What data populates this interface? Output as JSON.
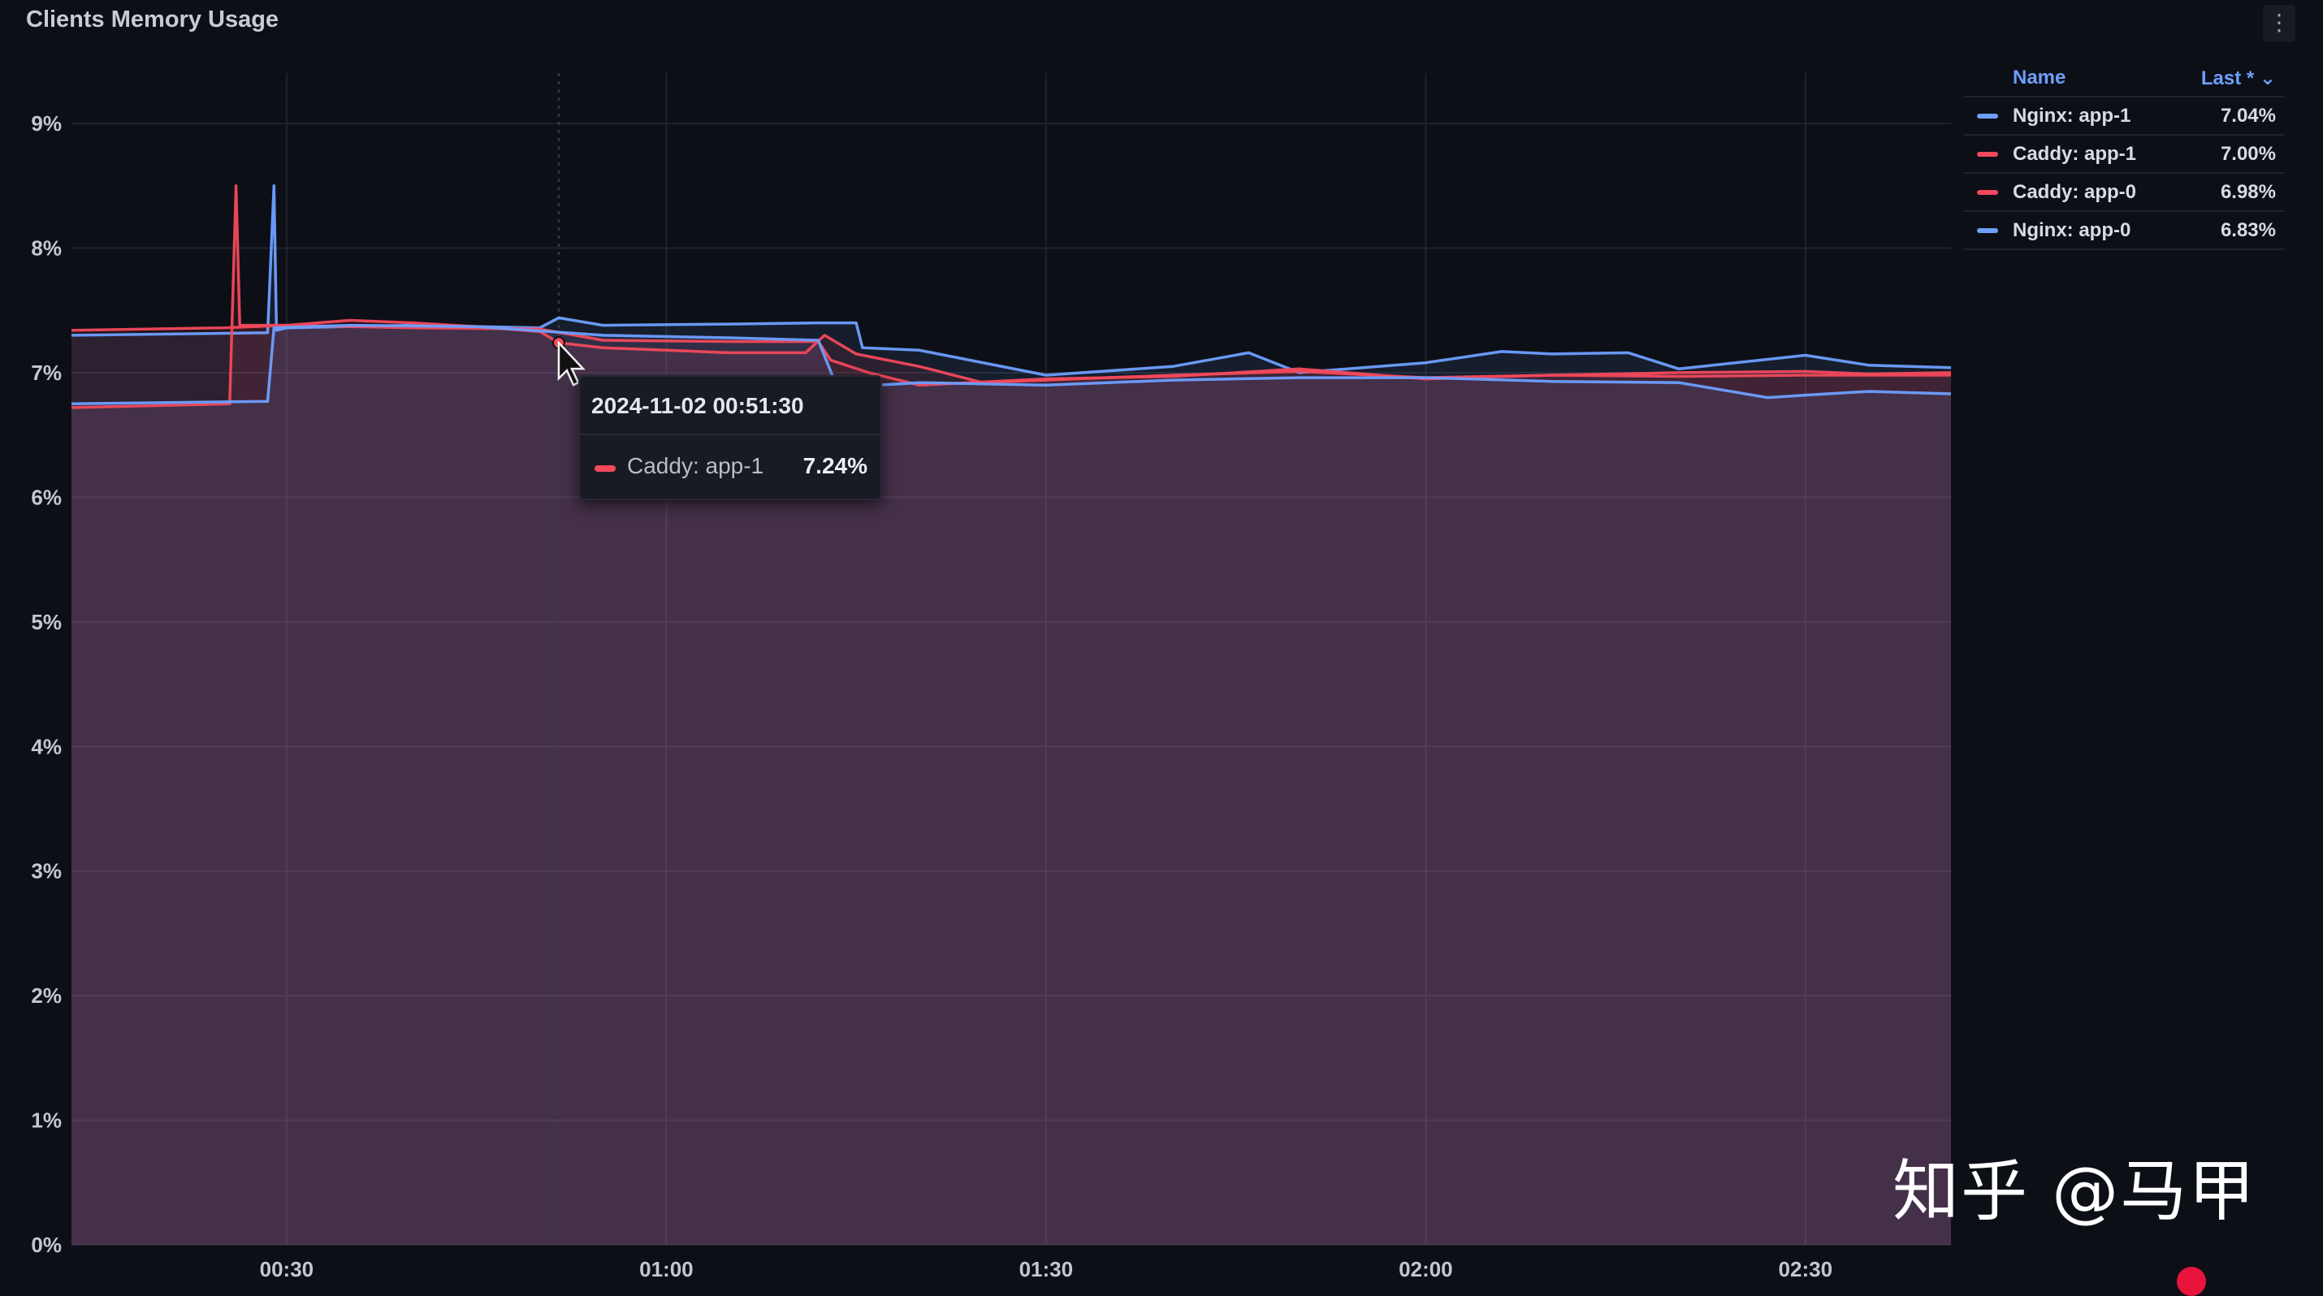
{
  "panel": {
    "title": "Clients Memory Usage",
    "menu_icon": "kebab-menu-icon"
  },
  "legend": {
    "header_name": "Name",
    "header_last": "Last * ⌄",
    "items": [
      {
        "name": "Nginx: app-1",
        "last": "7.04%",
        "color": "#6e9fff"
      },
      {
        "name": "Caddy: app-1",
        "last": "7.00%",
        "color": "#f2495c"
      },
      {
        "name": "Caddy: app-0",
        "last": "6.98%",
        "color": "#f2495c"
      },
      {
        "name": "Nginx: app-0",
        "last": "6.83%",
        "color": "#6e9fff"
      }
    ]
  },
  "tooltip": {
    "time": "2024-11-02 00:51:30",
    "series": "Caddy: app-1",
    "value": "7.24%",
    "color": "#f2495c"
  },
  "watermark": "知乎 @马甲",
  "chart_data": {
    "type": "line",
    "title": "Clients Memory Usage",
    "xlabel": "",
    "ylabel": "",
    "x_tick_labels": [
      "00:30",
      "01:00",
      "01:30",
      "02:00",
      "02:30"
    ],
    "x_tick_minutes": [
      30,
      60,
      90,
      120,
      150
    ],
    "xlim_minutes": [
      13,
      161.5
    ],
    "y_tick_labels": [
      "0%",
      "1%",
      "2%",
      "3%",
      "4%",
      "5%",
      "6%",
      "7%",
      "8%",
      "9%"
    ],
    "y_tick_values": [
      0,
      1,
      2,
      3,
      4,
      5,
      6,
      7,
      8,
      9
    ],
    "ylim": [
      0,
      9.6
    ],
    "grid": true,
    "legend_position": "right",
    "hover_time_minutes": 51.5,
    "series": [
      {
        "name": "Nginx: app-1",
        "color": "#6e9fff",
        "x": [
          13,
          28.5,
          29,
          29.2,
          30,
          40,
          50,
          51.5,
          55,
          65,
          72,
          75,
          75.5,
          80,
          90,
          100,
          106,
          110,
          120,
          126,
          130,
          136,
          140,
          150,
          155,
          161.5
        ],
        "values": [
          7.3,
          7.32,
          8.5,
          7.34,
          7.36,
          7.38,
          7.36,
          7.44,
          7.38,
          7.39,
          7.4,
          7.4,
          7.2,
          7.18,
          6.98,
          7.05,
          7.16,
          7.0,
          7.08,
          7.17,
          7.15,
          7.16,
          7.03,
          7.14,
          7.06,
          7.04
        ]
      },
      {
        "name": "Caddy: app-1",
        "color": "#f2495c",
        "x": [
          13,
          25,
          30,
          35,
          40,
          45,
          50,
          51.5,
          55,
          60,
          65,
          71,
          72.5,
          75,
          80,
          85,
          90,
          100,
          110,
          120,
          130,
          140,
          150,
          155,
          161.5
        ],
        "values": [
          7.34,
          7.36,
          7.38,
          7.42,
          7.4,
          7.37,
          7.33,
          7.24,
          7.2,
          7.18,
          7.16,
          7.16,
          7.3,
          7.15,
          7.05,
          6.92,
          6.94,
          6.98,
          7.01,
          6.96,
          6.98,
          7.0,
          7.01,
          6.99,
          7.0
        ]
      },
      {
        "name": "Caddy: app-0",
        "color": "#f2495c",
        "x": [
          13,
          25.5,
          26,
          26.3,
          30,
          40,
          50,
          55,
          65,
          72,
          73,
          76,
          80,
          90,
          100,
          110,
          120,
          130,
          140,
          150,
          161.5
        ],
        "values": [
          6.72,
          6.75,
          8.5,
          7.38,
          7.38,
          7.36,
          7.35,
          7.26,
          7.25,
          7.25,
          7.1,
          7.0,
          6.9,
          6.95,
          6.97,
          7.03,
          6.95,
          6.98,
          6.97,
          6.98,
          6.98
        ]
      },
      {
        "name": "Nginx: app-0",
        "color": "#6e9fff",
        "x": [
          13,
          28.5,
          29,
          35,
          45,
          55,
          65,
          72,
          73.5,
          80,
          90,
          100,
          110,
          120,
          130,
          140,
          147,
          150,
          155,
          161.5
        ],
        "values": [
          6.75,
          6.77,
          7.36,
          7.38,
          7.37,
          7.3,
          7.28,
          7.26,
          6.88,
          6.92,
          6.9,
          6.94,
          6.96,
          6.96,
          6.93,
          6.92,
          6.8,
          6.82,
          6.85,
          6.83
        ]
      }
    ]
  }
}
